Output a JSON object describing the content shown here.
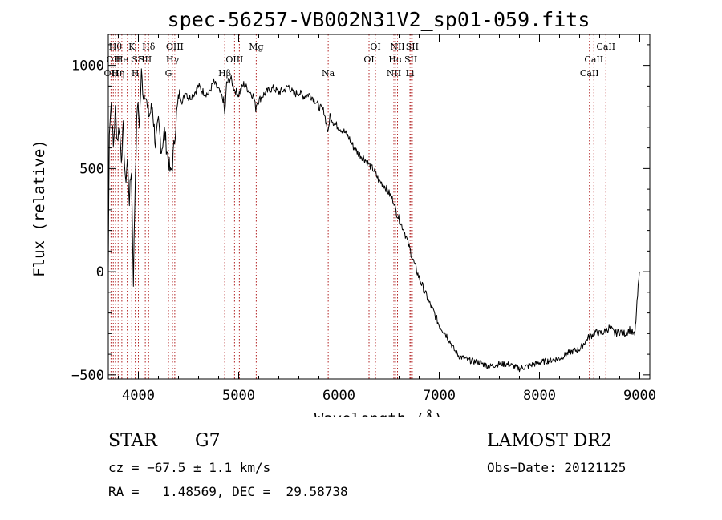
{
  "chart_data": {
    "type": "line",
    "title": "spec-56257-VB002N31V2_sp01-059.fits",
    "xlabel": "Wavelength (Å)",
    "ylabel": "Flux (relative)",
    "xlim": [
      3700,
      9100
    ],
    "ylim": [
      -520,
      1150
    ],
    "xticks": [
      4000,
      5000,
      6000,
      7000,
      8000,
      9000
    ],
    "yticks": [
      -500,
      0,
      500,
      1000
    ],
    "grid": false,
    "line_color": "#000000",
    "marker_color": "#b22222",
    "series": [
      {
        "x": [
          3700,
          3710,
          3730,
          3750,
          3770,
          3790,
          3810,
          3830,
          3850,
          3870,
          3890,
          3910,
          3930,
          3950,
          3970,
          3990,
          4010,
          4030,
          4050,
          4070,
          4090,
          4110,
          4140,
          4170,
          4200,
          4230,
          4260,
          4290,
          4320,
          4340,
          4360,
          4380,
          4410,
          4440,
          4470,
          4500,
          4550,
          4600,
          4650,
          4700,
          4750,
          4800,
          4850,
          4861,
          4880,
          4920,
          4960,
          5000,
          5050,
          5100,
          5150,
          5170,
          5180,
          5200,
          5250,
          5300,
          5350,
          5400,
          5450,
          5500,
          5550,
          5600,
          5650,
          5700,
          5750,
          5800,
          5850,
          5893,
          5910,
          5950,
          6000,
          6050,
          6100,
          6150,
          6200,
          6250,
          6300,
          6350,
          6400,
          6450,
          6500,
          6550,
          6563,
          6580,
          6620,
          6650,
          6700,
          6750,
          6800,
          6850,
          6900,
          6950,
          7000,
          7050,
          7100,
          7150,
          7200,
          7300,
          7400,
          7500,
          7600,
          7700,
          7800,
          7900,
          8000,
          8100,
          8200,
          8300,
          8400,
          8500,
          8520,
          8560,
          8600,
          8650,
          8700,
          8750,
          8800,
          8850,
          8900,
          8950,
          8990,
          9000
        ],
        "values": [
          10,
          700,
          820,
          600,
          780,
          640,
          700,
          560,
          690,
          420,
          540,
          350,
          500,
          -40,
          480,
          820,
          720,
          960,
          860,
          880,
          780,
          760,
          800,
          620,
          720,
          590,
          680,
          570,
          470,
          520,
          640,
          760,
          870,
          820,
          880,
          840,
          860,
          900,
          870,
          860,
          920,
          880,
          830,
          760,
          910,
          940,
          880,
          860,
          910,
          880,
          850,
          790,
          820,
          830,
          860,
          880,
          890,
          870,
          880,
          900,
          860,
          870,
          850,
          860,
          840,
          800,
          780,
          670,
          760,
          720,
          700,
          680,
          650,
          600,
          570,
          550,
          520,
          490,
          440,
          420,
          380,
          340,
          300,
          280,
          230,
          200,
          120,
          40,
          -30,
          -90,
          -150,
          -200,
          -260,
          -290,
          -330,
          -380,
          -410,
          -430,
          -440,
          -460,
          -445,
          -450,
          -470,
          -455,
          -440,
          -430,
          -420,
          -390,
          -375,
          -310,
          -310,
          -290,
          -300,
          -290,
          -270,
          -300,
          -290,
          -300,
          -280,
          -310,
          -40,
          0
        ]
      }
    ],
    "line_markers": [
      {
        "wl": 3727,
        "label": "OII",
        "row": 3
      },
      {
        "wl": 3750,
        "label": "OII",
        "row": 2
      },
      {
        "wl": 3771,
        "label": "Hθ",
        "row": 1
      },
      {
        "wl": 3798,
        "label": "Hη",
        "row": 3
      },
      {
        "wl": 3835,
        "label": "He",
        "row": 2
      },
      {
        "wl": 3889,
        "label": "",
        "row": 0
      },
      {
        "wl": 3934,
        "label": "K",
        "row": 1
      },
      {
        "wl": 3969,
        "label": "H",
        "row": 3
      },
      {
        "wl": 4000,
        "label": "SII",
        "row": 2
      },
      {
        "wl": 4069,
        "label": "SII",
        "row": 2
      },
      {
        "wl": 4102,
        "label": "Hδ",
        "row": 1
      },
      {
        "wl": 4300,
        "label": "G",
        "row": 3
      },
      {
        "wl": 4340,
        "label": "Hγ",
        "row": 2
      },
      {
        "wl": 4363,
        "label": "OIII",
        "row": 1
      },
      {
        "wl": 4861,
        "label": "Hβ",
        "row": 3
      },
      {
        "wl": 4959,
        "label": "OIII",
        "row": 2
      },
      {
        "wl": 5007,
        "label": "",
        "row": 0
      },
      {
        "wl": 5175,
        "label": "Mg",
        "row": 1
      },
      {
        "wl": 5893,
        "label": "Na",
        "row": 3
      },
      {
        "wl": 6300,
        "label": "OI",
        "row": 2
      },
      {
        "wl": 6364,
        "label": "OI",
        "row": 1
      },
      {
        "wl": 6548,
        "label": "NII",
        "row": 3
      },
      {
        "wl": 6563,
        "label": "Hα",
        "row": 2
      },
      {
        "wl": 6584,
        "label": "NII",
        "row": 1
      },
      {
        "wl": 6708,
        "label": "Li",
        "row": 3
      },
      {
        "wl": 6717,
        "label": "SII",
        "row": 2
      },
      {
        "wl": 6731,
        "label": "SII",
        "row": 1
      },
      {
        "wl": 8498,
        "label": "CaII",
        "row": 3
      },
      {
        "wl": 8542,
        "label": "CaII",
        "row": 2
      },
      {
        "wl": 8662,
        "label": "CaII",
        "row": 1
      }
    ]
  },
  "info": {
    "object_class": "STAR",
    "subclass": "G7",
    "survey": "LAMOST DR2",
    "cz": "cz = −67.5 ± 1.1 km/s",
    "obs_date": "Obs−Date: 20121125",
    "coords": "RA =   1.48569, DEC =  29.58738"
  }
}
